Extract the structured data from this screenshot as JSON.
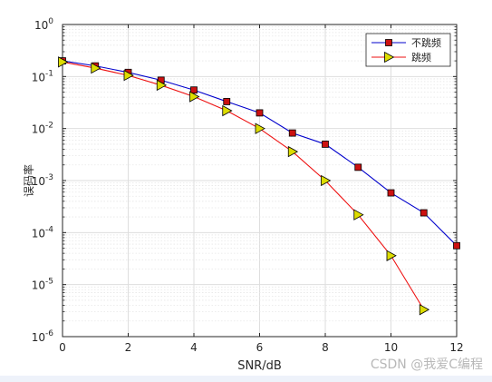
{
  "chart_data": {
    "type": "line",
    "title": "",
    "xlabel": "SNR/dB",
    "ylabel": "误码率",
    "xlim": [
      0,
      12
    ],
    "ylim": [
      1e-06,
      1
    ],
    "yscale": "log",
    "x_ticks": [
      "0",
      "2",
      "4",
      "6",
      "8",
      "10",
      "12"
    ],
    "y_tick_base": "10",
    "y_tick_exponents": [
      "0",
      "-1",
      "-2",
      "-3",
      "-4",
      "-5",
      "-6"
    ],
    "grid": true,
    "legend_position": "top-right",
    "series": [
      {
        "name": "不跳频",
        "color": "#0000cc",
        "marker": "square",
        "marker_fill": "#cc1111",
        "x": [
          0,
          1,
          2,
          3,
          4,
          5,
          6,
          7,
          8,
          9,
          10,
          11,
          12
        ],
        "y": [
          0.2,
          0.16,
          0.12,
          0.085,
          0.055,
          0.033,
          0.02,
          0.0082,
          0.005,
          0.0018,
          0.00058,
          0.00024,
          5.6e-05
        ]
      },
      {
        "name": "跳频",
        "color": "#ee1111",
        "marker": "triangle-right",
        "marker_fill": "#dddd00",
        "x": [
          0,
          1,
          2,
          3,
          4,
          5,
          6,
          7,
          8,
          9,
          10,
          11
        ],
        "y": [
          0.19,
          0.145,
          0.105,
          0.068,
          0.041,
          0.022,
          0.01,
          0.0036,
          0.001,
          0.00022,
          3.6e-05,
          3.3e-06
        ]
      }
    ]
  },
  "watermark": "CSDN @我爱C编程"
}
